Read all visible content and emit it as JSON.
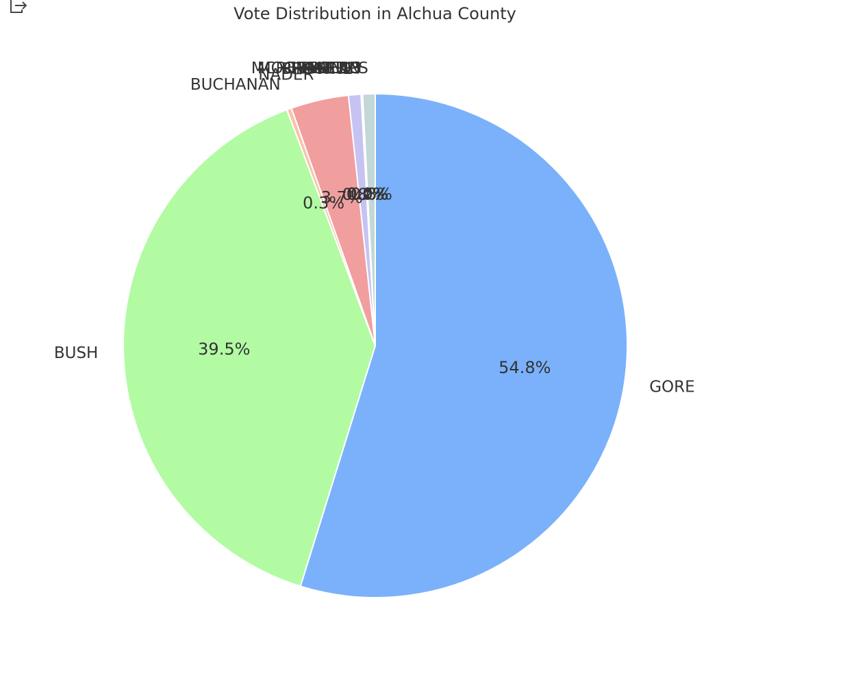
{
  "toolbar": {
    "export_icon": "export-icon"
  },
  "chart_data": {
    "type": "pie",
    "title": "Vote Distribution in Alchua County",
    "start_angle_deg": 90,
    "direction": "clockwise",
    "slices": [
      {
        "label": "GORE",
        "value": 54.8,
        "pct_label": "54.8%",
        "color": "#7ab1fa"
      },
      {
        "label": "BUSH",
        "value": 39.5,
        "pct_label": "39.5%",
        "color": "#b2fba3"
      },
      {
        "label": "BUCHANAN",
        "value": 0.3,
        "pct_label": "0.3%",
        "color": "#f8c3a9"
      },
      {
        "label": "NADER",
        "value": 3.7,
        "pct_label": "3.7%",
        "color": "#f19e9e"
      },
      {
        "label": "BROWNE",
        "value": 0.8,
        "pct_label": "0.8%",
        "color": "#c6c3f3"
      },
      {
        "label": "HAGELIN",
        "value": 0.1,
        "pct_label": "0.1%",
        "color": "#f3c1d9"
      },
      {
        "label": "HARRIS",
        "value": 0.0,
        "pct_label": "0.0%",
        "color": "#fbe2a8"
      },
      {
        "label": "MCREYNOLDS",
        "value": 0.0,
        "pct_label": "0.0%",
        "color": "#c7dfae"
      },
      {
        "label": "MOOREHEAD",
        "value": 0.0,
        "pct_label": "0.0%",
        "color": "#c3e0f0"
      },
      {
        "label": "PHILLIPS",
        "value": 0.8,
        "pct_label": "0.8%",
        "color": "#c3d8d6"
      }
    ]
  }
}
